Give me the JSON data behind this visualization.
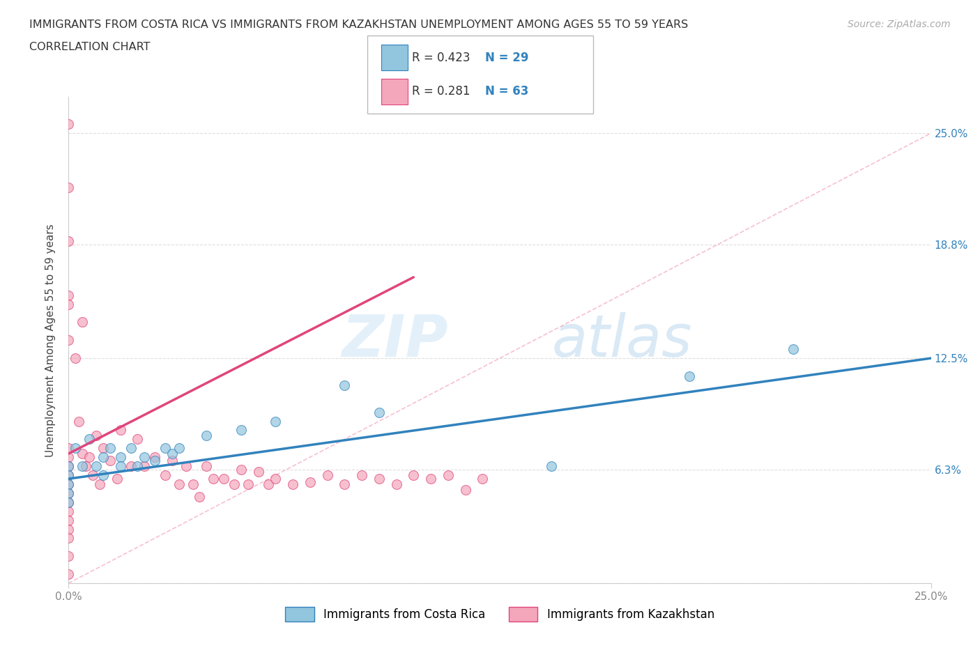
{
  "title_line1": "IMMIGRANTS FROM COSTA RICA VS IMMIGRANTS FROM KAZAKHSTAN UNEMPLOYMENT AMONG AGES 55 TO 59 YEARS",
  "title_line2": "CORRELATION CHART",
  "source": "Source: ZipAtlas.com",
  "ylabel": "Unemployment Among Ages 55 to 59 years",
  "xlim": [
    0.0,
    0.25
  ],
  "ylim": [
    0.0,
    0.27
  ],
  "ytick_positions": [
    0.0,
    0.063,
    0.125,
    0.188,
    0.25
  ],
  "ytick_labels_right": [
    "",
    "6.3%",
    "12.5%",
    "18.8%",
    "25.0%"
  ],
  "xtick_positions": [
    0.0,
    0.25
  ],
  "xtick_labels": [
    "0.0%",
    "25.0%"
  ],
  "watermark_zip": "ZIP",
  "watermark_atlas": "atlas",
  "legend_r1": "R = 0.423",
  "legend_n1": "N = 29",
  "legend_r2": "R = 0.281",
  "legend_n2": "N = 63",
  "color_blue": "#92c5de",
  "color_pink": "#f4a6bb",
  "color_blue_dark": "#3182bd",
  "color_pink_dark": "#e0457b",
  "color_dashed": "#f4a6bb",
  "grid_color": "#dddddd",
  "blue_scatter_x": [
    0.0,
    0.0,
    0.0,
    0.0,
    0.0,
    0.002,
    0.004,
    0.006,
    0.008,
    0.01,
    0.01,
    0.012,
    0.015,
    0.015,
    0.018,
    0.02,
    0.022,
    0.025,
    0.028,
    0.03,
    0.032,
    0.04,
    0.05,
    0.06,
    0.08,
    0.09,
    0.14,
    0.18,
    0.21
  ],
  "blue_scatter_y": [
    0.065,
    0.06,
    0.055,
    0.05,
    0.045,
    0.075,
    0.065,
    0.08,
    0.065,
    0.07,
    0.06,
    0.075,
    0.07,
    0.065,
    0.075,
    0.065,
    0.07,
    0.068,
    0.075,
    0.072,
    0.075,
    0.082,
    0.085,
    0.09,
    0.11,
    0.095,
    0.065,
    0.115,
    0.13
  ],
  "pink_scatter_x": [
    0.0,
    0.0,
    0.0,
    0.0,
    0.0,
    0.0,
    0.0,
    0.0,
    0.0,
    0.0,
    0.0,
    0.0,
    0.0,
    0.0,
    0.0,
    0.0,
    0.0,
    0.0,
    0.0,
    0.003,
    0.004,
    0.005,
    0.006,
    0.007,
    0.008,
    0.009,
    0.01,
    0.012,
    0.014,
    0.015,
    0.018,
    0.02,
    0.022,
    0.025,
    0.028,
    0.03,
    0.032,
    0.034,
    0.036,
    0.038,
    0.04,
    0.042,
    0.045,
    0.048,
    0.05,
    0.052,
    0.055,
    0.058,
    0.06,
    0.065,
    0.07,
    0.075,
    0.08,
    0.085,
    0.09,
    0.095,
    0.1,
    0.105,
    0.11,
    0.115,
    0.12,
    0.002,
    0.004
  ],
  "pink_scatter_y": [
    0.255,
    0.22,
    0.19,
    0.16,
    0.155,
    0.135,
    0.075,
    0.07,
    0.065,
    0.06,
    0.055,
    0.05,
    0.045,
    0.04,
    0.035,
    0.03,
    0.025,
    0.015,
    0.005,
    0.09,
    0.072,
    0.065,
    0.07,
    0.06,
    0.082,
    0.055,
    0.075,
    0.068,
    0.058,
    0.085,
    0.065,
    0.08,
    0.065,
    0.07,
    0.06,
    0.068,
    0.055,
    0.065,
    0.055,
    0.048,
    0.065,
    0.058,
    0.058,
    0.055,
    0.063,
    0.055,
    0.062,
    0.055,
    0.058,
    0.055,
    0.056,
    0.06,
    0.055,
    0.06,
    0.058,
    0.055,
    0.06,
    0.058,
    0.06,
    0.052,
    0.058,
    0.125,
    0.145
  ],
  "blue_trend_x": [
    0.0,
    0.25
  ],
  "blue_trend_y": [
    0.058,
    0.125
  ],
  "pink_trend_x": [
    0.0,
    0.1
  ],
  "pink_trend_y": [
    0.072,
    0.17
  ]
}
